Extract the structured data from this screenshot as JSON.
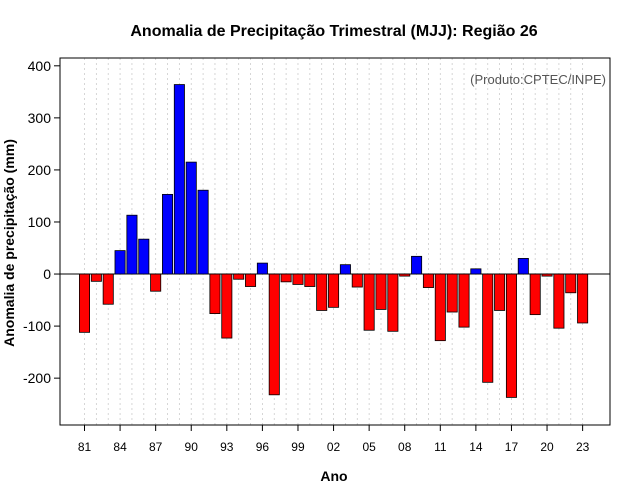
{
  "chart_data": {
    "type": "bar",
    "title": "Anomalia de Precipitação Trimestral (MJJ): Região 26",
    "xlabel": "Ano",
    "ylabel": "Anomalia de precipitação (mm)",
    "credit": "(Produto:CPTEC/INPE)",
    "ylim": [
      -290,
      415
    ],
    "yticks": [
      -200,
      -100,
      0,
      100,
      200,
      300,
      400
    ],
    "xtick_labels": [
      {
        "index": 0,
        "label": "81"
      },
      {
        "index": 3,
        "label": "84"
      },
      {
        "index": 6,
        "label": "87"
      },
      {
        "index": 9,
        "label": "90"
      },
      {
        "index": 12,
        "label": "93"
      },
      {
        "index": 15,
        "label": "96"
      },
      {
        "index": 18,
        "label": "99"
      },
      {
        "index": 21,
        "label": "02"
      },
      {
        "index": 24,
        "label": "05"
      },
      {
        "index": 27,
        "label": "08"
      },
      {
        "index": 30,
        "label": "11"
      },
      {
        "index": 33,
        "label": "14"
      },
      {
        "index": 36,
        "label": "17"
      },
      {
        "index": 39,
        "label": "20"
      },
      {
        "index": 42,
        "label": "23"
      }
    ],
    "categories": [
      "1981",
      "1982",
      "1983",
      "1984",
      "1985",
      "1986",
      "1987",
      "1988",
      "1989",
      "1990",
      "1991",
      "1992",
      "1993",
      "1994",
      "1995",
      "1996",
      "1997",
      "1998",
      "1999",
      "2000",
      "2001",
      "2002",
      "2003",
      "2004",
      "2005",
      "2006",
      "2007",
      "2008",
      "2009",
      "2010",
      "2011",
      "2012",
      "2013",
      "2014",
      "2015",
      "2016",
      "2017",
      "2018",
      "2019",
      "2020",
      "2021",
      "2022",
      "2023"
    ],
    "values": [
      -112,
      -14,
      -58,
      45,
      113,
      67,
      -33,
      153,
      364,
      215,
      161,
      -76,
      -123,
      -10,
      -24,
      21,
      -232,
      -15,
      -20,
      -24,
      -70,
      -64,
      18,
      -25,
      -108,
      -68,
      -110,
      -4,
      34,
      -26,
      -128,
      -73,
      -102,
      10,
      -208,
      -70,
      -237,
      30,
      -78,
      -4,
      -104,
      -36,
      -94
    ],
    "colors": {
      "positive": "#0000ff",
      "negative": "#ff0000",
      "outline": "#000000"
    },
    "grid": true
  }
}
